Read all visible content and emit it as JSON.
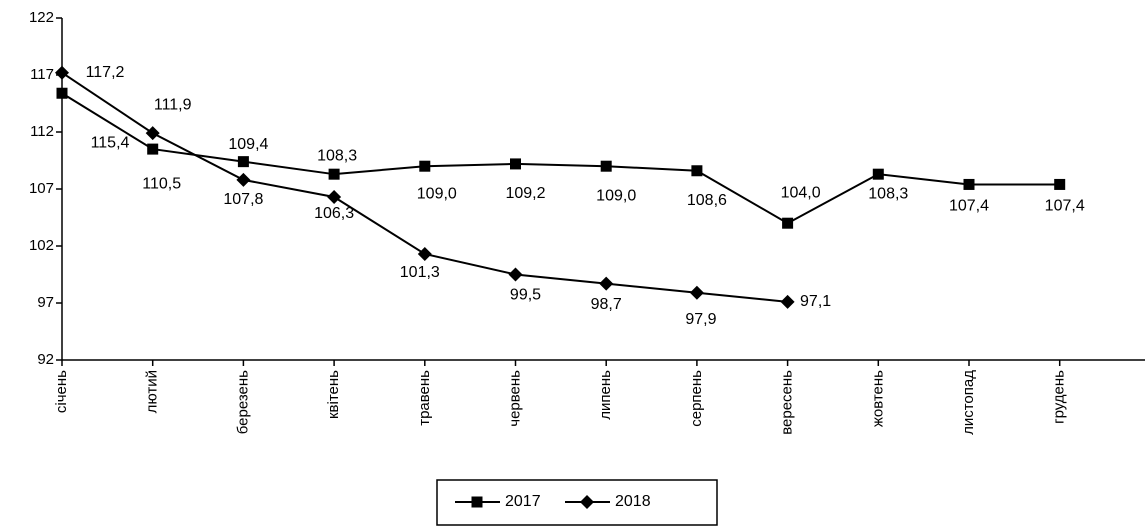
{
  "chart_data": {
    "type": "line",
    "categories": [
      "січень",
      "лютий",
      "березень",
      "квітень",
      "травень",
      "червень",
      "липень",
      "серпень",
      "вересень",
      "жовтень",
      "листопад",
      "грудень"
    ],
    "series": [
      {
        "name": "2017",
        "color": "#000000",
        "marker": "square",
        "values": [
          115.4,
          110.5,
          109.4,
          108.3,
          109.0,
          109.2,
          109.0,
          108.6,
          104.0,
          108.3,
          107.4,
          107.4
        ],
        "value_labels": [
          "115,4",
          "110,5",
          "109,4",
          "108,3",
          "109,0",
          "109,2",
          "109,0",
          "108,6",
          "104,0",
          "108,3",
          "107,4",
          "107,4"
        ]
      },
      {
        "name": "2018",
        "color": "#000000",
        "marker": "diamond",
        "values": [
          117.2,
          111.9,
          107.8,
          106.3,
          101.3,
          99.5,
          98.7,
          97.9,
          97.1,
          null,
          null,
          null
        ],
        "value_labels": [
          "117,2",
          "111,9",
          "107,8",
          "106,3",
          "101,3",
          "99,5",
          "98,7",
          "97,9",
          "97,1",
          null,
          null,
          null
        ]
      }
    ],
    "ylim": [
      92,
      122
    ],
    "yticks": [
      92,
      97,
      102,
      107,
      112,
      117,
      122
    ],
    "legend": "bottom"
  }
}
